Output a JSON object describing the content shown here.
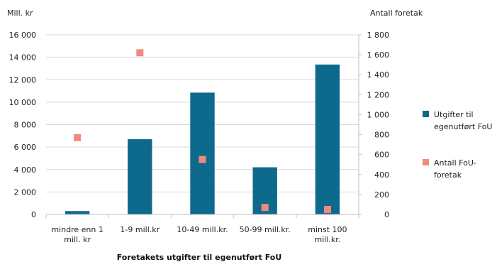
{
  "chart_data": {
    "type": "bar",
    "categories": [
      [
        "mindre enn 1",
        "mill. kr"
      ],
      [
        "1-9 mill.kr"
      ],
      [
        "10-49 mill.kr."
      ],
      [
        "50-99 mill.kr."
      ],
      [
        "minst 100",
        "mill.kr."
      ]
    ],
    "xlabel": "Foretakets utgifter til egenutført FoU",
    "ylabel_left": "Mill. kr",
    "ylabel_right": "Antall foretak",
    "ylim_left": [
      0,
      16000
    ],
    "ylim_right": [
      0,
      1800
    ],
    "yticks_left": [
      "0",
      "2 000",
      "4 000",
      "6 000",
      "8 000",
      "10 000",
      "12 000",
      "14 000",
      "16 000"
    ],
    "yticks_right": [
      "0",
      "200",
      "400",
      "600",
      "800",
      "1 000",
      "1 200",
      "1 400",
      "1 600",
      "1 800"
    ],
    "grid": true,
    "legend_position": "right",
    "series": [
      {
        "name": [
          "Utgifter til",
          "egenutført FoU"
        ],
        "type": "bar",
        "axis": "left",
        "color": "#0e6a8c",
        "values": [
          300,
          6700,
          10850,
          4200,
          13350
        ]
      },
      {
        "name": [
          "Antall FoU-",
          "foretak"
        ],
        "type": "scatter",
        "axis": "right",
        "color": "#ef8a80",
        "values": [
          770,
          1620,
          550,
          70,
          50
        ]
      }
    ]
  }
}
